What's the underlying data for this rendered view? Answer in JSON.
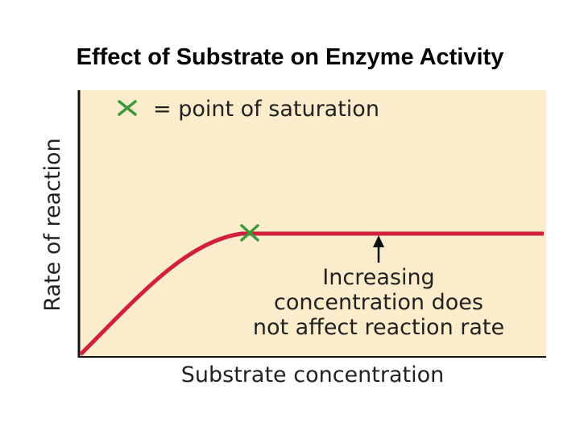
{
  "header": {
    "title": "Effect of Substrate on Enzyme Activity"
  },
  "diagram": {
    "legend": "= point of saturation",
    "y_axis_label": "Rate of reaction",
    "x_axis_label": "Substrate concentration",
    "annotation": [
      "Increasing",
      "concentration does",
      "not affect reaction rate"
    ]
  }
}
